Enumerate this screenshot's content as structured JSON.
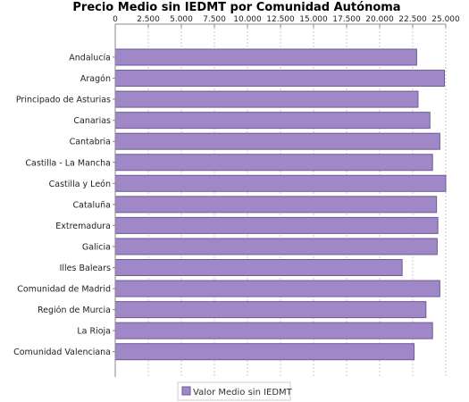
{
  "chart_data": {
    "type": "bar",
    "orientation": "horizontal",
    "title": "Precio Medio sin IEDMT por Comunidad Autónoma",
    "xlim": [
      0,
      25000
    ],
    "tick_values": [
      0,
      2500,
      5000,
      7500,
      10000,
      12500,
      15000,
      17500,
      20000,
      22500,
      25000
    ],
    "tick_labels": [
      "0",
      "2.500",
      "5.000",
      "7.500",
      "10.000",
      "12.500",
      "15.000",
      "17.500",
      "20.000",
      "22.500",
      "25.000"
    ],
    "categories": [
      "Andalucía",
      "Aragón",
      "Principado de Asturias",
      "Canarias",
      "Cantabria",
      "Castilla - La Mancha",
      "Castilla y León",
      "Cataluña",
      "Extremadura",
      "Galicia",
      "Illes Balears",
      "Comunidad de Madrid",
      "Región de Murcia",
      "La Rioja",
      "Comunidad Valenciana"
    ],
    "series": [
      {
        "name": "Valor Medio sin IEDMT",
        "color": "#a088c8",
        "values": [
          22800,
          24900,
          22900,
          23800,
          24550,
          24000,
          25000,
          24300,
          24400,
          24350,
          21700,
          24550,
          23500,
          24000,
          22600
        ]
      }
    ],
    "grid": true,
    "axis_position": "top",
    "legend": "bottom"
  }
}
